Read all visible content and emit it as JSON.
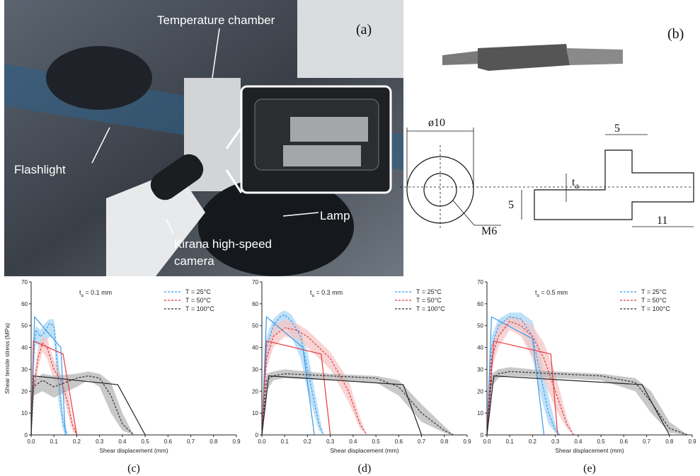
{
  "photo": {
    "panel": "(a)",
    "labels": [
      "Temperature chamber",
      "Flashlight",
      "Lamp",
      "Kirana high-speed",
      "camera"
    ]
  },
  "diagram": {
    "panel": "(b)",
    "diameter": "ø10",
    "thread": "M6",
    "dims": [
      "5",
      "5",
      "11"
    ],
    "thickness": {
      "symbol": "t",
      "subscript": "a"
    }
  },
  "chart_data": [
    {
      "type": "line",
      "caption": "(c)",
      "annotation": {
        "symbol": "t",
        "subscript": "a",
        "text": " = 0.1 mm"
      },
      "x_label": "Shear displacement (mm)",
      "y_label": "Shear tensile stress (MPa)",
      "xlim": [
        0,
        0.9
      ],
      "xticks": [
        {
          "value": 0,
          "label": "0.0"
        },
        0.1,
        0.2,
        0.3,
        0.4,
        0.5,
        0.6,
        0.7,
        0.8,
        0.9
      ],
      "ylim": [
        0,
        70
      ],
      "yticks": [
        0,
        10,
        20,
        30,
        40,
        50,
        60,
        70
      ],
      "series": [
        {
          "name": "T = 25°C",
          "color": "#3a9be6",
          "band_color": "#a9d6f5",
          "style": "dashed",
          "x": [
            0,
            0.01,
            0.02,
            0.04,
            0.06,
            0.08,
            0.1,
            0.12,
            0.14,
            0.16
          ],
          "values": [
            0,
            35,
            48,
            45,
            47,
            51,
            50,
            25,
            5,
            0
          ],
          "lower": [
            0,
            25,
            42,
            40,
            42,
            45,
            44,
            15,
            2,
            0
          ],
          "upper": [
            0,
            40,
            50,
            48,
            51,
            53,
            53,
            35,
            10,
            0
          ]
        },
        {
          "name": "T = 50°C",
          "color": "#e8383b",
          "band_color": "#f6c6c6",
          "style": "dashed",
          "x": [
            0,
            0.01,
            0.03,
            0.05,
            0.07,
            0.1,
            0.13,
            0.16,
            0.18,
            0.2
          ],
          "values": [
            0,
            20,
            35,
            42,
            40,
            30,
            25,
            15,
            5,
            0
          ],
          "lower": [
            0,
            15,
            30,
            38,
            35,
            25,
            22,
            10,
            2,
            0
          ],
          "upper": [
            0,
            25,
            40,
            45,
            44,
            34,
            28,
            20,
            8,
            0
          ]
        },
        {
          "name": "T = 100°C",
          "color": "#333333",
          "band_color": "#b5b5b5",
          "style": "dashed",
          "x": [
            0,
            0.01,
            0.05,
            0.1,
            0.2,
            0.25,
            0.3,
            0.35,
            0.4,
            0.45
          ],
          "values": [
            0,
            22,
            25,
            22,
            26,
            27,
            26,
            18,
            5,
            0
          ],
          "lower": [
            0,
            18,
            20,
            17,
            22,
            25,
            22,
            10,
            2,
            0
          ],
          "upper": [
            0,
            25,
            28,
            27,
            28,
            29,
            28,
            24,
            10,
            0
          ]
        }
      ],
      "model_series": [
        {
          "color": "#3a9be6",
          "style": "solid",
          "x": [
            0,
            0.015,
            0.13,
            0.15
          ],
          "values": [
            0,
            54,
            40,
            0
          ]
        },
        {
          "color": "#e8383b",
          "style": "solid",
          "x": [
            0,
            0.01,
            0.14,
            0.2
          ],
          "values": [
            0,
            43,
            37,
            0
          ]
        },
        {
          "color": "#222222",
          "style": "solid",
          "x": [
            0,
            0.01,
            0.38,
            0.5
          ],
          "values": [
            0,
            27,
            23,
            0
          ]
        }
      ]
    },
    {
      "type": "line",
      "caption": "(d)",
      "annotation": {
        "symbol": "t",
        "subscript": "a",
        "text": " = 0.3 mm"
      },
      "x_label": "Shear displacement (mm)",
      "xlim": [
        0,
        0.9
      ],
      "xticks": [
        {
          "value": 0,
          "label": "0.0"
        },
        0.1,
        0.2,
        0.3,
        0.4,
        0.5,
        0.6,
        0.7,
        0.8,
        0.9
      ],
      "ylim": [
        0,
        70
      ],
      "yticks": [
        0,
        10,
        20,
        30,
        40,
        50,
        60,
        70
      ],
      "series": [
        {
          "name": "T = 25°C",
          "color": "#3a9be6",
          "band_color": "#a9d6f5",
          "style": "dashed",
          "x": [
            0,
            0.02,
            0.05,
            0.08,
            0.1,
            0.13,
            0.17,
            0.2,
            0.25,
            0.27
          ],
          "values": [
            0,
            40,
            50,
            54,
            55,
            52,
            45,
            30,
            5,
            0
          ],
          "lower": [
            0,
            30,
            45,
            48,
            50,
            45,
            35,
            20,
            2,
            0
          ],
          "upper": [
            0,
            45,
            53,
            56,
            57,
            55,
            48,
            38,
            10,
            0
          ]
        },
        {
          "name": "T = 50°C",
          "color": "#e8383b",
          "band_color": "#f6c6c6",
          "style": "dashed",
          "x": [
            0,
            0.02,
            0.05,
            0.1,
            0.15,
            0.2,
            0.3,
            0.38,
            0.43,
            0.46
          ],
          "values": [
            0,
            35,
            45,
            49,
            48,
            45,
            35,
            20,
            5,
            0
          ],
          "lower": [
            0,
            30,
            40,
            45,
            44,
            40,
            30,
            15,
            3,
            0
          ],
          "upper": [
            0,
            40,
            50,
            53,
            51,
            48,
            38,
            25,
            8,
            0
          ]
        },
        {
          "name": "T = 100°C",
          "color": "#333333",
          "band_color": "#b5b5b5",
          "style": "dashed",
          "x": [
            0,
            0.02,
            0.05,
            0.1,
            0.3,
            0.5,
            0.6,
            0.7,
            0.8,
            0.84
          ],
          "values": [
            0,
            25,
            27,
            28,
            27,
            26,
            22,
            10,
            2,
            0
          ],
          "lower": [
            0,
            20,
            25,
            26,
            25,
            24,
            18,
            6,
            1,
            0
          ],
          "upper": [
            0,
            28,
            29,
            30,
            28,
            27,
            25,
            14,
            4,
            0
          ]
        }
      ],
      "model_series": [
        {
          "color": "#3a9be6",
          "style": "solid",
          "x": [
            0,
            0.02,
            0.18,
            0.23
          ],
          "values": [
            0,
            54,
            40,
            0
          ]
        },
        {
          "color": "#e8383b",
          "style": "solid",
          "x": [
            0,
            0.02,
            0.26,
            0.3
          ],
          "values": [
            0,
            43,
            37,
            0
          ]
        },
        {
          "color": "#222222",
          "style": "solid",
          "x": [
            0,
            0.03,
            0.62,
            0.7
          ],
          "values": [
            0,
            27,
            23,
            0
          ]
        }
      ]
    },
    {
      "type": "line",
      "caption": "(e)",
      "annotation": {
        "symbol": "t",
        "subscript": "a",
        "text": " = 0.5 mm"
      },
      "x_label": "Shear displacement (mm)",
      "xlim": [
        0,
        0.9
      ],
      "xticks": [
        {
          "value": 0,
          "label": "0.0"
        },
        0.1,
        0.2,
        0.3,
        0.4,
        0.5,
        0.6,
        0.7,
        0.8,
        0.9
      ],
      "ylim": [
        0,
        70
      ],
      "yticks": [
        0,
        10,
        20,
        30,
        40,
        50,
        60,
        70
      ],
      "series": [
        {
          "name": "T = 25°C",
          "color": "#3a9be6",
          "band_color": "#a9d6f5",
          "style": "dashed",
          "x": [
            0,
            0.02,
            0.05,
            0.1,
            0.15,
            0.2,
            0.23,
            0.27,
            0.3,
            0.32
          ],
          "values": [
            0,
            40,
            50,
            54,
            53,
            45,
            30,
            10,
            2,
            0
          ],
          "lower": [
            0,
            30,
            45,
            50,
            48,
            35,
            20,
            5,
            1,
            0
          ],
          "upper": [
            0,
            45,
            53,
            56,
            56,
            52,
            40,
            18,
            5,
            0
          ]
        },
        {
          "name": "T = 50°C",
          "color": "#e8383b",
          "band_color": "#f6c6c6",
          "style": "dashed",
          "x": [
            0,
            0.02,
            0.05,
            0.1,
            0.15,
            0.2,
            0.25,
            0.3,
            0.35,
            0.38
          ],
          "values": [
            0,
            35,
            45,
            52,
            50,
            45,
            35,
            20,
            5,
            0
          ],
          "lower": [
            0,
            30,
            40,
            48,
            45,
            35,
            25,
            12,
            3,
            0
          ],
          "upper": [
            0,
            40,
            50,
            54,
            53,
            50,
            42,
            28,
            8,
            0
          ]
        },
        {
          "name": "T = 100°C",
          "color": "#333333",
          "band_color": "#b5b5b5",
          "style": "dashed",
          "x": [
            0,
            0.02,
            0.05,
            0.1,
            0.3,
            0.5,
            0.65,
            0.72,
            0.8,
            0.88
          ],
          "values": [
            0,
            25,
            28,
            29,
            28,
            27,
            24,
            15,
            3,
            0
          ],
          "lower": [
            0,
            22,
            26,
            27,
            26,
            25,
            20,
            10,
            1,
            0
          ],
          "upper": [
            0,
            28,
            30,
            31,
            29,
            28,
            26,
            20,
            6,
            0
          ]
        }
      ],
      "model_series": [
        {
          "color": "#3a9be6",
          "style": "solid",
          "x": [
            0,
            0.02,
            0.2,
            0.25
          ],
          "values": [
            0,
            54,
            44,
            0
          ]
        },
        {
          "color": "#e8383b",
          "style": "solid",
          "x": [
            0,
            0.03,
            0.28,
            0.31
          ],
          "values": [
            0,
            43,
            37,
            0
          ]
        },
        {
          "color": "#222222",
          "style": "solid",
          "x": [
            0,
            0.03,
            0.68,
            0.8
          ],
          "values": [
            0,
            27,
            23,
            0
          ]
        }
      ]
    }
  ]
}
